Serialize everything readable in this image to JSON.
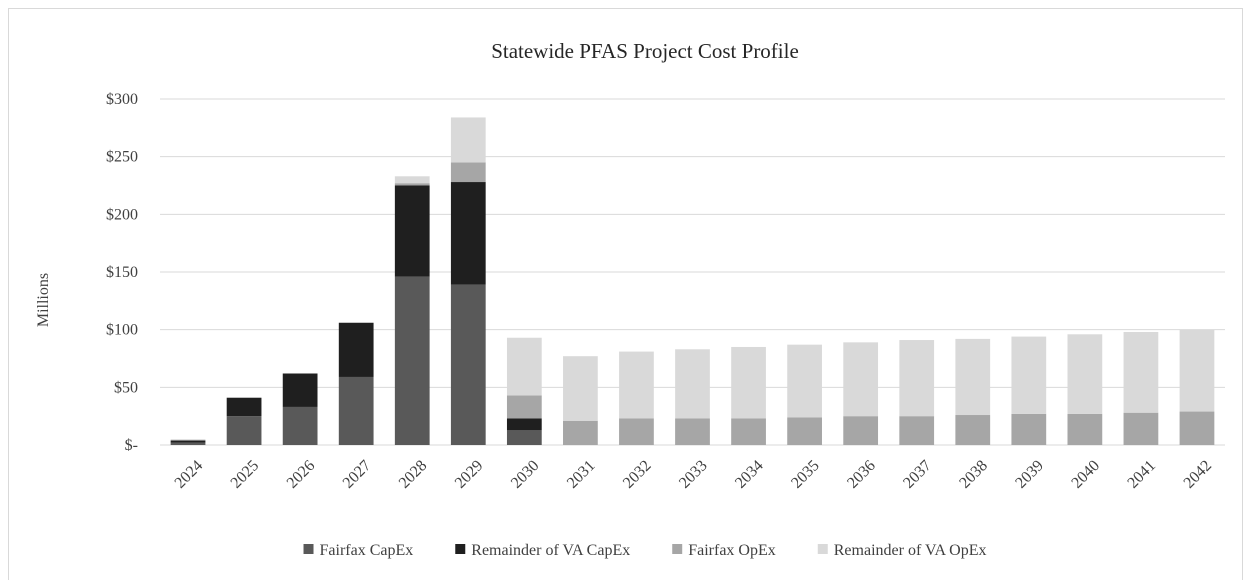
{
  "chart_data": {
    "type": "stacked_bar",
    "title": "Statewide PFAS Project Cost Profile",
    "y_label": "Millions",
    "categories": [
      "2024",
      "2025",
      "2026",
      "2027",
      "2028",
      "2029",
      "2030",
      "2031",
      "2032",
      "2033",
      "2034",
      "2035",
      "2036",
      "2037",
      "2038",
      "2039",
      "2040",
      "2041",
      "2042"
    ],
    "series": [
      {
        "name": "Fairfax CapEx",
        "color": "#595959",
        "values": [
          2,
          25,
          33,
          59,
          146,
          139,
          13,
          0,
          0,
          0,
          0,
          0,
          0,
          0,
          0,
          0,
          0,
          0,
          0
        ]
      },
      {
        "name": "Remainder of VA CapEx",
        "color": "#1f1f1f",
        "values": [
          2,
          16,
          29,
          47,
          79,
          89,
          10,
          0,
          0,
          0,
          0,
          0,
          0,
          0,
          0,
          0,
          0,
          0,
          0
        ]
      },
      {
        "name": "Fairfax OpEx",
        "color": "#a6a6a6",
        "values": [
          0,
          0,
          0,
          0,
          2,
          17,
          20,
          21,
          23,
          23,
          23,
          24,
          25,
          25,
          26,
          27,
          27,
          28,
          29
        ]
      },
      {
        "name": "Remainder of VA OpEx",
        "color": "#d9d9d9",
        "values": [
          1,
          0,
          0,
          0,
          6,
          39,
          50,
          56,
          58,
          60,
          62,
          63,
          64,
          66,
          66,
          67,
          69,
          70,
          71
        ]
      }
    ],
    "ylim": [
      0,
      300
    ],
    "yticks": [
      {
        "value": 0,
        "label": "$-"
      },
      {
        "value": 50,
        "label": "$50"
      },
      {
        "value": 100,
        "label": "$100"
      },
      {
        "value": 150,
        "label": "$150"
      },
      {
        "value": 200,
        "label": "$200"
      },
      {
        "value": 250,
        "label": "$250"
      },
      {
        "value": 300,
        "label": "$300"
      }
    ],
    "grid": true,
    "legend": "bottom"
  }
}
